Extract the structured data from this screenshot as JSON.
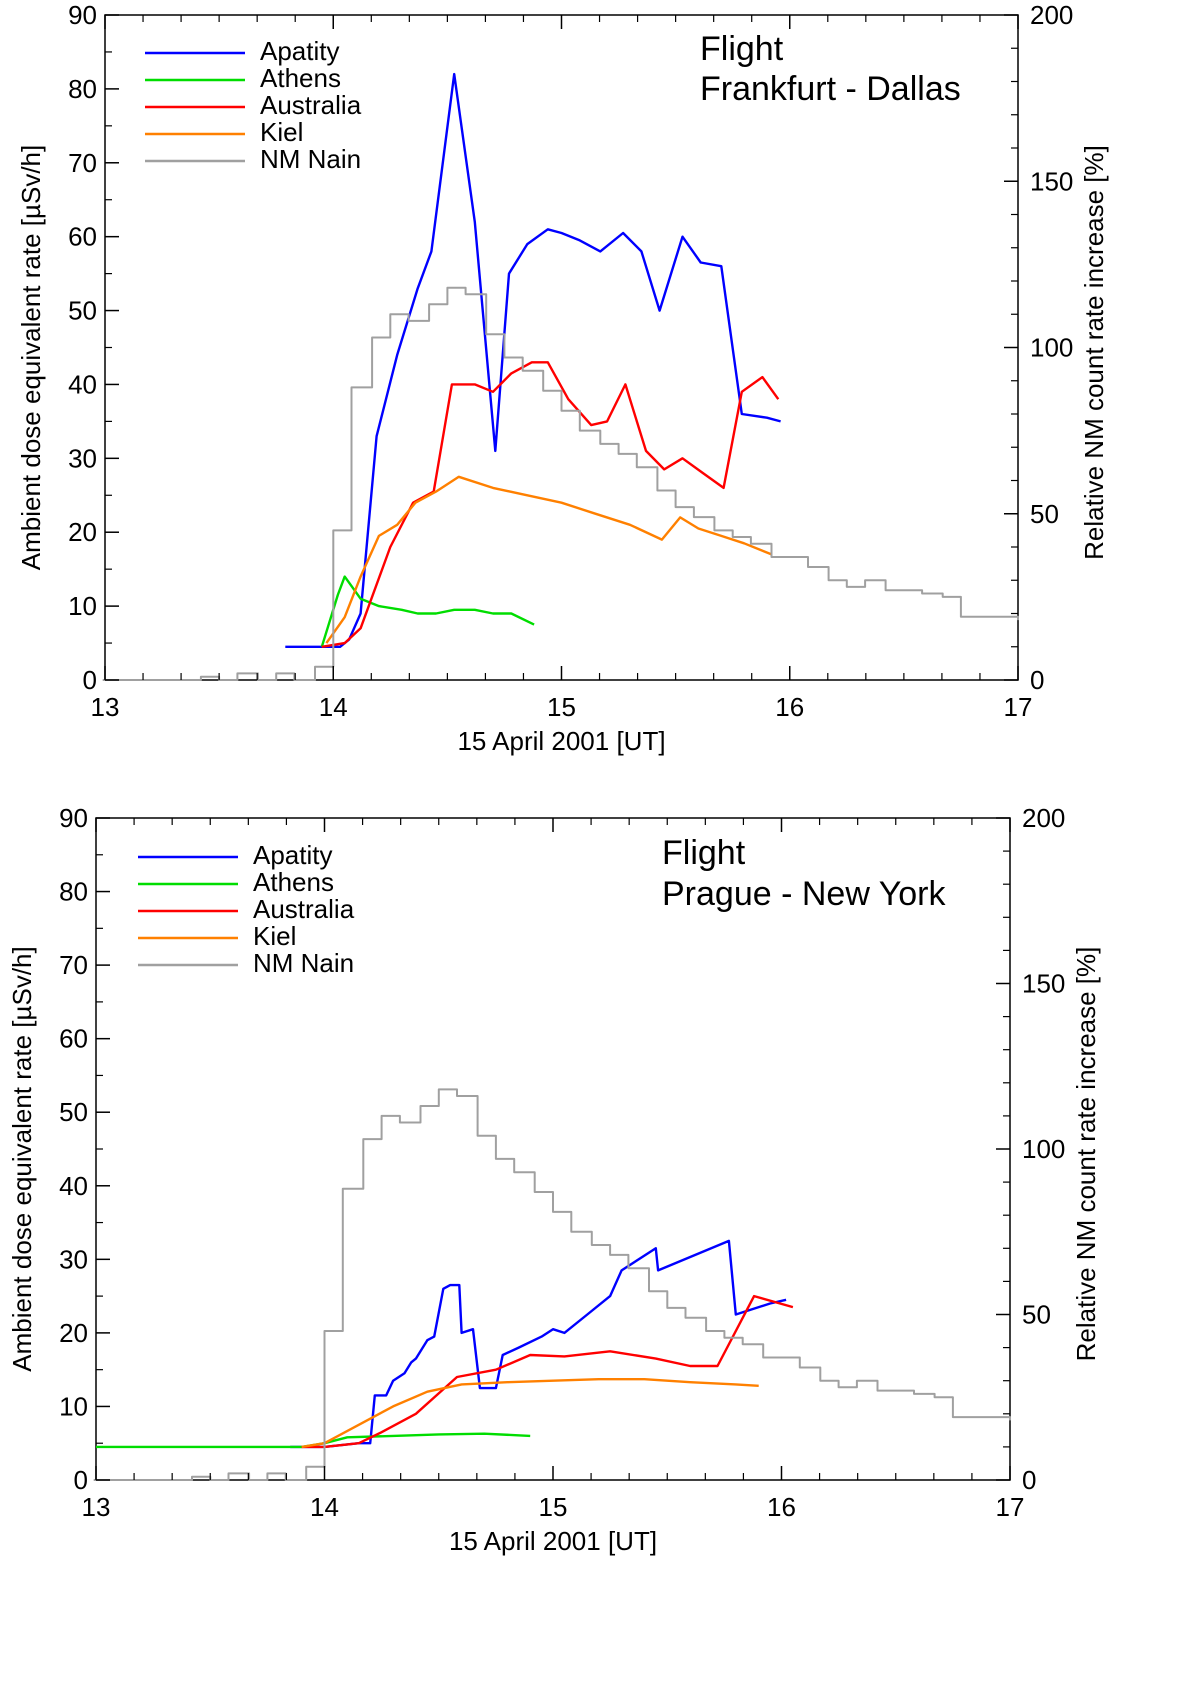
{
  "chart_data": [
    {
      "type": "line",
      "title": "Flight",
      "subtitle": "Frankfurt - Dallas",
      "xlabel": "15 April 2001 [UT]",
      "ylabel": "Ambient dose equivalent rate [µSv/h]",
      "y2label": "Relative NM count rate increase [%]",
      "xlim": [
        13,
        17
      ],
      "ylim": [
        0,
        90
      ],
      "y2lim": [
        0,
        200
      ],
      "xticks": [
        "13",
        "14",
        "15",
        "16",
        "17"
      ],
      "yticks": [
        "0",
        "10",
        "20",
        "30",
        "40",
        "50",
        "60",
        "70",
        "80",
        "90"
      ],
      "y2ticks": [
        "0",
        "50",
        "100",
        "150",
        "200"
      ],
      "legend_position": "top-left",
      "series": [
        {
          "name": "Apatity",
          "color": "#0000ff",
          "axis": "left",
          "step": false,
          "x": [
            13.79,
            14.03,
            14.07,
            14.12,
            14.19,
            14.28,
            14.37,
            14.43,
            14.53,
            14.62,
            14.71,
            14.77,
            14.85,
            14.94,
            15.0,
            15.08,
            15.17,
            15.27,
            15.35,
            15.43,
            15.53,
            15.61,
            15.7,
            15.79,
            15.9,
            15.96
          ],
          "y": [
            4.5,
            4.5,
            5.5,
            9,
            33,
            44,
            53,
            58,
            82,
            62,
            31,
            55,
            59,
            61,
            60.5,
            59.5,
            58,
            60.5,
            58,
            50,
            60,
            56.5,
            56,
            36,
            35.5,
            35
          ]
        },
        {
          "name": "Athens",
          "color": "#00dd00",
          "axis": "left",
          "step": false,
          "x": [
            13.95,
            14.02,
            14.05,
            14.12,
            14.2,
            14.3,
            14.37,
            14.45,
            14.53,
            14.62,
            14.7,
            14.78,
            14.88
          ],
          "y": [
            4.5,
            11.5,
            14,
            11,
            10,
            9.5,
            9,
            9,
            9.5,
            9.5,
            9,
            9,
            7.5
          ]
        },
        {
          "name": "Australia",
          "color": "#ff0000",
          "axis": "left",
          "step": false,
          "x": [
            13.95,
            14.05,
            14.12,
            14.25,
            14.35,
            14.44,
            14.52,
            14.62,
            14.7,
            14.78,
            14.87,
            14.94,
            15.03,
            15.13,
            15.2,
            15.28,
            15.37,
            15.45,
            15.53,
            15.62,
            15.71,
            15.79,
            15.88,
            15.95
          ],
          "y": [
            4.5,
            5,
            7,
            18,
            24,
            25.5,
            40,
            40,
            39,
            41.5,
            43,
            43,
            38,
            34.5,
            35,
            40,
            31,
            28.5,
            30,
            28,
            26,
            39,
            41,
            38
          ]
        },
        {
          "name": "Kiel",
          "color": "#ff8000",
          "axis": "left",
          "step": false,
          "x": [
            13.97,
            14.05,
            14.12,
            14.2,
            14.28,
            14.36,
            14.45,
            14.55,
            14.7,
            14.85,
            15.0,
            15.15,
            15.3,
            15.44,
            15.52,
            15.6,
            15.7,
            15.8,
            15.92
          ],
          "y": [
            5,
            8.5,
            14,
            19.5,
            21,
            24,
            25.5,
            27.5,
            26,
            25,
            24,
            22.5,
            21,
            19,
            22,
            20.5,
            19.5,
            18.5,
            17
          ]
        },
        {
          "name": "NM Nain",
          "color": "#a0a0a0",
          "axis": "right",
          "step": true,
          "x": [
            12.99,
            13.17,
            13.33,
            13.42,
            13.5,
            13.58,
            13.67,
            13.75,
            13.83,
            13.92,
            14.0,
            14.08,
            14.17,
            14.25,
            14.33,
            14.42,
            14.5,
            14.58,
            14.67,
            14.75,
            14.83,
            14.92,
            15.0,
            15.08,
            15.17,
            15.25,
            15.33,
            15.42,
            15.5,
            15.58,
            15.67,
            15.75,
            15.83,
            15.92,
            16.0,
            16.08,
            16.17,
            16.25,
            16.33,
            16.42,
            16.5,
            16.58,
            16.67,
            16.75,
            16.83,
            16.92,
            17.0
          ],
          "y": [
            0,
            0,
            0,
            1,
            0,
            2,
            0,
            2,
            0,
            4,
            45,
            88,
            103,
            110,
            108,
            113,
            118,
            116,
            104,
            97,
            93,
            87,
            81,
            75,
            71,
            68,
            64,
            57,
            52,
            49,
            45,
            43,
            41,
            37,
            37,
            34,
            30,
            28,
            30,
            27,
            27,
            26,
            25,
            19,
            19,
            19,
            18
          ]
        }
      ]
    },
    {
      "type": "line",
      "title": "Flight",
      "subtitle": "Prague - New York",
      "xlabel": "15 April 2001 [UT]",
      "ylabel": "Ambient dose equivalent rate [µSv/h]",
      "y2label": "Relative NM count rate increase [%]",
      "xlim": [
        13,
        17
      ],
      "ylim": [
        0,
        90
      ],
      "y2lim": [
        0,
        200
      ],
      "xticks": [
        "13",
        "14",
        "15",
        "16",
        "17"
      ],
      "yticks": [
        "0",
        "10",
        "20",
        "30",
        "40",
        "50",
        "60",
        "70",
        "80",
        "90"
      ],
      "y2ticks": [
        "0",
        "50",
        "100",
        "150",
        "200"
      ],
      "legend_position": "top-left",
      "series": [
        {
          "name": "Apatity",
          "color": "#0000ff",
          "axis": "left",
          "step": false,
          "x": [
            13.85,
            14.0,
            14.15,
            14.2,
            14.22,
            14.27,
            14.3,
            14.35,
            14.38,
            14.4,
            14.45,
            14.48,
            14.52,
            14.55,
            14.59,
            14.6,
            14.65,
            14.68,
            14.71,
            14.75,
            14.78,
            14.85,
            14.95,
            15.0,
            15.05,
            15.15,
            15.25,
            15.3,
            15.45,
            15.46,
            15.77,
            15.8,
            15.95,
            16.02
          ],
          "y": [
            4.5,
            4.5,
            5,
            5,
            11.5,
            11.5,
            13.5,
            14.5,
            16,
            16.5,
            19,
            19.5,
            26,
            26.5,
            26.5,
            20,
            20.5,
            12.5,
            12.5,
            12.5,
            17,
            18,
            19.5,
            20.5,
            20,
            22.5,
            25,
            28.5,
            31.5,
            28.5,
            32.5,
            22.5,
            24,
            24.5
          ]
        },
        {
          "name": "Athens",
          "color": "#00dd00",
          "axis": "left",
          "step": false,
          "x": [
            13.0,
            13.9,
            14.0,
            14.1,
            14.3,
            14.5,
            14.7,
            14.9
          ],
          "y": [
            4.5,
            4.5,
            5,
            5.8,
            6,
            6.2,
            6.3,
            6
          ]
        },
        {
          "name": "Australia",
          "color": "#ff0000",
          "axis": "left",
          "step": false,
          "x": [
            13.9,
            14.0,
            14.15,
            14.25,
            14.4,
            14.58,
            14.75,
            14.9,
            15.05,
            15.25,
            15.45,
            15.6,
            15.72,
            15.88,
            16.05
          ],
          "y": [
            4.5,
            4.5,
            5,
            6.5,
            9,
            14,
            15,
            17,
            16.8,
            17.5,
            16.5,
            15.5,
            15.5,
            25,
            23.5
          ]
        },
        {
          "name": "Kiel",
          "color": "#ff8000",
          "axis": "left",
          "step": false,
          "x": [
            13.9,
            14.0,
            14.15,
            14.3,
            14.45,
            14.6,
            14.8,
            15.0,
            15.2,
            15.4,
            15.6,
            15.8,
            15.9
          ],
          "y": [
            4.5,
            5,
            7.5,
            10,
            12,
            13,
            13.3,
            13.5,
            13.7,
            13.7,
            13.3,
            13,
            12.8
          ]
        },
        {
          "name": "NM Nain",
          "color": "#a0a0a0",
          "axis": "right",
          "step": true,
          "x": [
            12.99,
            13.17,
            13.33,
            13.42,
            13.5,
            13.58,
            13.67,
            13.75,
            13.83,
            13.92,
            14.0,
            14.08,
            14.17,
            14.25,
            14.33,
            14.42,
            14.5,
            14.58,
            14.67,
            14.75,
            14.83,
            14.92,
            15.0,
            15.08,
            15.17,
            15.25,
            15.33,
            15.42,
            15.5,
            15.58,
            15.67,
            15.75,
            15.83,
            15.92,
            16.0,
            16.08,
            16.17,
            16.25,
            16.33,
            16.42,
            16.5,
            16.58,
            16.67,
            16.75,
            16.83,
            16.92,
            17.0
          ],
          "y": [
            0,
            0,
            0,
            1,
            0,
            2,
            0,
            2,
            0,
            4,
            45,
            88,
            103,
            110,
            108,
            113,
            118,
            116,
            104,
            97,
            93,
            87,
            81,
            75,
            71,
            68,
            64,
            57,
            52,
            49,
            45,
            43,
            41,
            37,
            37,
            34,
            30,
            28,
            30,
            27,
            27,
            26,
            25,
            19,
            19,
            19,
            18
          ]
        }
      ]
    }
  ]
}
